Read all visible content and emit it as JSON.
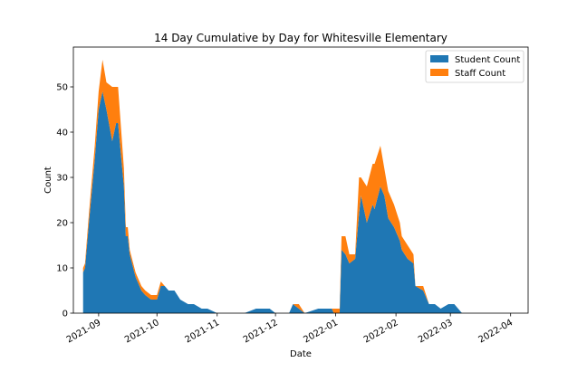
{
  "chart_data": {
    "type": "area",
    "stacked": true,
    "title": "14 Day Cumulative by Day for Whitesville Elementary",
    "xlabel": "Date",
    "ylabel": "Count",
    "xlim": [
      "2021-08-19",
      "2022-04-10"
    ],
    "ylim": [
      0,
      58.8
    ],
    "x_ticks": [
      "2021-09-01",
      "2021-10-01",
      "2021-11-01",
      "2021-12-01",
      "2022-01-01",
      "2022-02-01",
      "2022-03-01",
      "2022-04-01"
    ],
    "x_tick_labels": [
      "2021-09",
      "2021-10",
      "2021-11",
      "2021-12",
      "2022-01",
      "2022-02",
      "2022-03",
      "2022-04"
    ],
    "y_ticks": [
      0,
      10,
      20,
      30,
      40,
      50
    ],
    "y_tick_labels": [
      "0",
      "10",
      "20",
      "30",
      "40",
      "50"
    ],
    "legend_position": "top-right",
    "grid": false,
    "x": [
      "2021-08-24",
      "2021-08-25",
      "2021-08-27",
      "2021-08-30",
      "2021-09-01",
      "2021-09-03",
      "2021-09-05",
      "2021-09-08",
      "2021-09-10",
      "2021-09-11",
      "2021-09-14",
      "2021-09-15",
      "2021-09-16",
      "2021-09-17",
      "2021-09-20",
      "2021-09-23",
      "2021-09-25",
      "2021-09-28",
      "2021-10-01",
      "2021-10-03",
      "2021-10-05",
      "2021-10-07",
      "2021-10-10",
      "2021-10-13",
      "2021-10-17",
      "2021-10-20",
      "2021-10-24",
      "2021-10-27",
      "2021-11-01",
      "2021-11-15",
      "2021-11-21",
      "2021-11-28",
      "2021-12-01",
      "2021-12-03",
      "2021-12-08",
      "2021-12-10",
      "2021-12-13",
      "2021-12-16",
      "2021-12-23",
      "2021-12-30",
      "2021-12-31",
      "2022-01-03",
      "2022-01-04",
      "2022-01-06",
      "2022-01-08",
      "2022-01-11",
      "2022-01-13",
      "2022-01-14",
      "2022-01-17",
      "2022-01-20",
      "2022-01-21",
      "2022-01-24",
      "2022-01-26",
      "2022-01-28",
      "2022-01-31",
      "2022-02-03",
      "2022-02-04",
      "2022-02-07",
      "2022-02-10",
      "2022-02-11",
      "2022-02-15",
      "2022-02-18",
      "2022-02-21",
      "2022-02-24",
      "2022-02-28",
      "2022-03-03",
      "2022-03-07",
      "2022-04-03"
    ],
    "series": [
      {
        "name": "Student Count",
        "color": "#1f77b4",
        "values": [
          9,
          10,
          20,
          34,
          45,
          49,
          45,
          38,
          42,
          42,
          28,
          17,
          17,
          13,
          8,
          5,
          4,
          3,
          3,
          6,
          6,
          5,
          5,
          3,
          2,
          2,
          1,
          1,
          0,
          0,
          1,
          1,
          0,
          0,
          0,
          2,
          1,
          0,
          1,
          1,
          0,
          0,
          14,
          13,
          11,
          12,
          22,
          26,
          20,
          24,
          23,
          28,
          26,
          21,
          19,
          16,
          14,
          12,
          11,
          6,
          5,
          2,
          2,
          1,
          2,
          2,
          0,
          0
        ]
      },
      {
        "name": "Staff Count",
        "color": "#ff7f0e",
        "values": [
          1,
          1,
          2,
          3,
          4,
          7,
          6,
          12,
          8,
          8,
          4,
          2,
          2,
          1,
          1,
          1,
          1,
          1,
          1,
          1,
          0,
          0,
          0,
          0,
          0,
          0,
          0,
          0,
          0,
          0,
          0,
          0,
          0,
          0,
          0,
          0,
          1,
          0,
          0,
          0,
          1,
          1,
          3,
          4,
          2,
          1,
          8,
          4,
          8,
          9,
          10,
          9,
          6,
          6,
          5,
          4,
          3,
          3,
          2,
          0,
          1,
          0,
          0,
          0,
          0,
          0,
          0,
          0
        ]
      }
    ]
  }
}
